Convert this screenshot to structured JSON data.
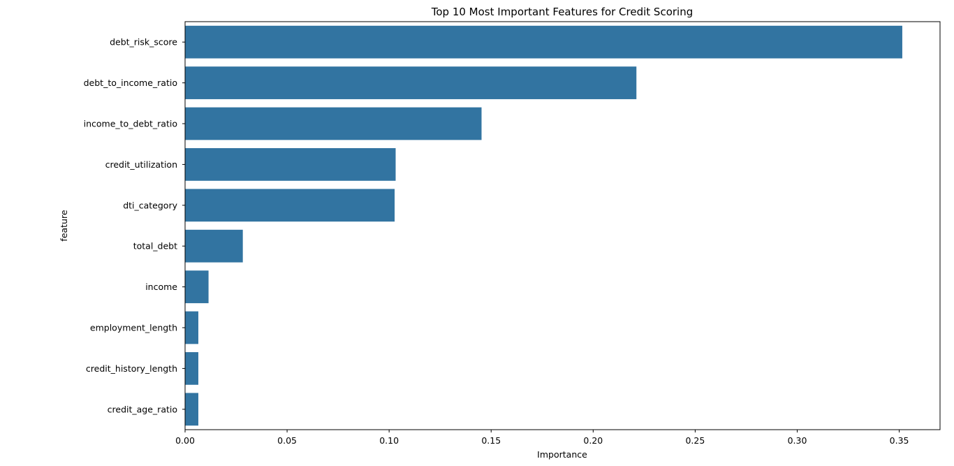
{
  "chart_data": {
    "type": "bar",
    "orientation": "horizontal",
    "title": "Top 10 Most Important Features for Credit Scoring",
    "xlabel": "Importance",
    "ylabel": "feature",
    "categories": [
      "debt_risk_score",
      "debt_to_income_ratio",
      "income_to_debt_ratio",
      "credit_utilization",
      "dti_category",
      "total_debt",
      "income",
      "employment_length",
      "credit_history_length",
      "credit_age_ratio"
    ],
    "values": [
      0.3515,
      0.2212,
      0.1453,
      0.1032,
      0.1027,
      0.0283,
      0.0115,
      0.0065,
      0.0065,
      0.0065
    ],
    "xlim": [
      0,
      0.37
    ],
    "xticks": [
      0.0,
      0.05,
      0.1,
      0.15,
      0.2,
      0.25,
      0.3,
      0.35
    ],
    "xtick_labels": [
      "0.00",
      "0.05",
      "0.10",
      "0.15",
      "0.20",
      "0.25",
      "0.30",
      "0.35"
    ],
    "grid": false,
    "bar_color": "#3274a1"
  }
}
